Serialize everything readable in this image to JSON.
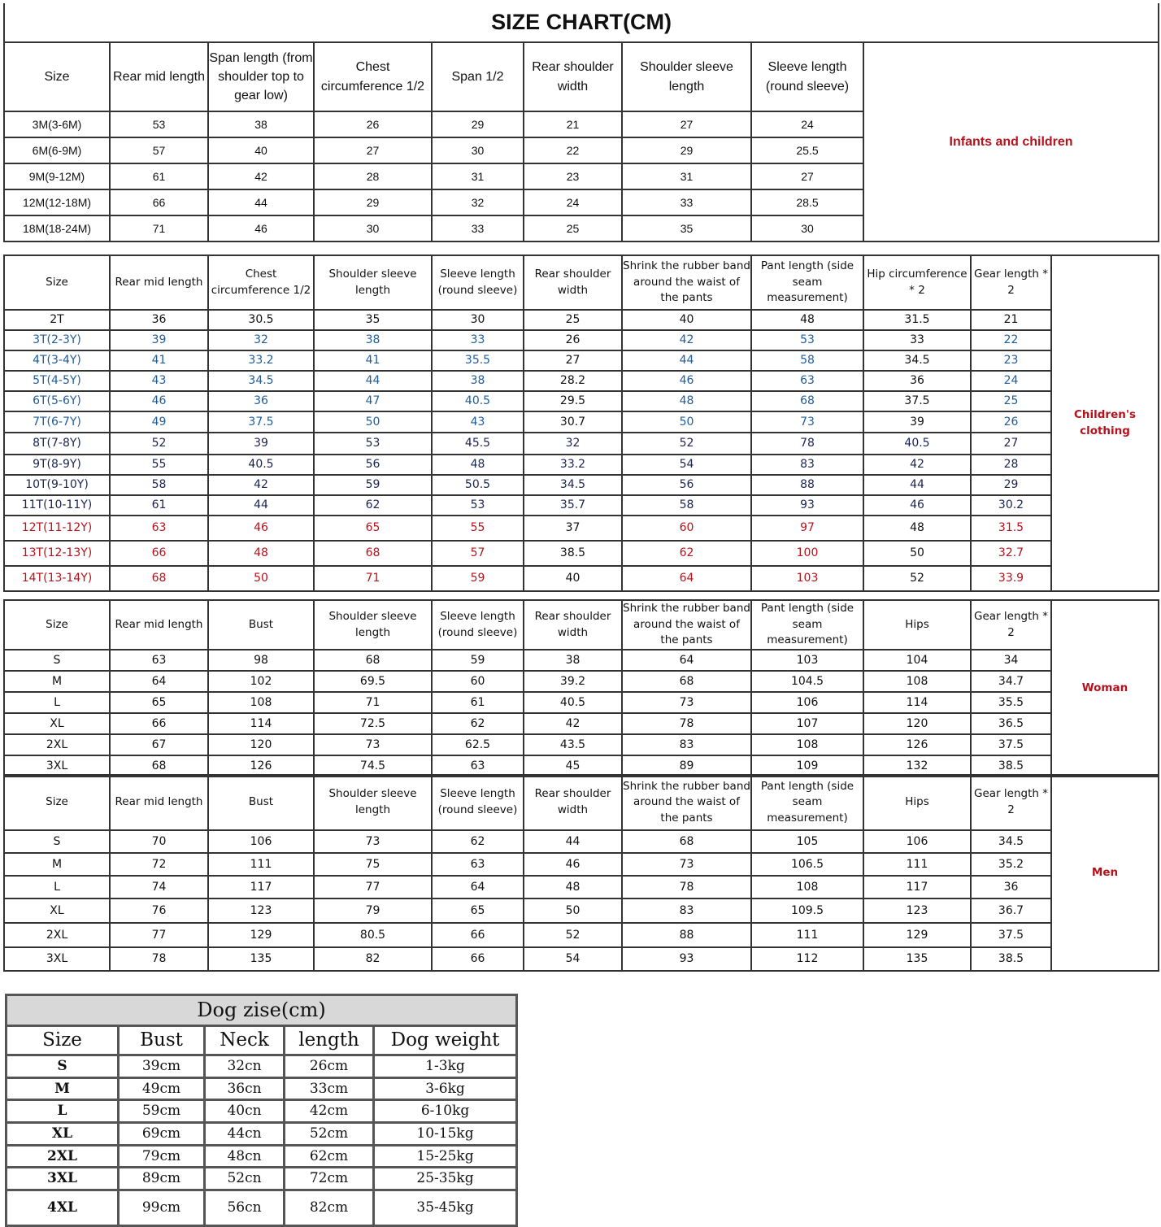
{
  "title": "SIZE CHART(CM)",
  "colors": {
    "label": "#b5121b",
    "blue": "#1f5c99",
    "red": "#b5121b",
    "navy": "#1a2450"
  },
  "infants": {
    "label": "Infants and children",
    "headers": [
      "Size",
      "Rear mid length",
      "Span length (from shoulder top to gear low)",
      "Chest circumference 1/2",
      "Span 1/2",
      "Rear shoulder width",
      "Shoulder sleeve length",
      "Sleeve length (round sleeve)"
    ],
    "rows": [
      {
        "color": "black",
        "cells": [
          "3M(3-6M)",
          "53",
          "38",
          "26",
          "29",
          "21",
          "27",
          "24"
        ]
      },
      {
        "color": "black",
        "cells": [
          "6M(6-9M)",
          "57",
          "40",
          "27",
          "30",
          "22",
          "29",
          "25.5"
        ]
      },
      {
        "color": "black",
        "cells": [
          "9M(9-12M)",
          "61",
          "42",
          "28",
          "31",
          "23",
          "31",
          "27"
        ]
      },
      {
        "color": "black",
        "cells": [
          "12M(12-18M)",
          "66",
          "44",
          "29",
          "32",
          "24",
          "33",
          "28.5"
        ]
      },
      {
        "color": "black",
        "cells": [
          "18M(18-24M)",
          "71",
          "46",
          "30",
          "33",
          "25",
          "35",
          "30"
        ]
      }
    ]
  },
  "children": {
    "label": "Children's clothing",
    "headers": [
      "Size",
      "Rear mid length",
      "Chest circumference 1/2",
      "Shoulder sleeve length",
      "Sleeve length (round sleeve)",
      "Rear shoulder width",
      "Shrink the rubber band around the waist of the pants",
      "Pant length (side seam measurement)",
      "Hip circumference * 2",
      "Gear length * 2"
    ],
    "black_columns": [
      5,
      8
    ],
    "rows": [
      {
        "color": "black",
        "cells": [
          "2T",
          "36",
          "30.5",
          "35",
          "30",
          "25",
          "40",
          "48",
          "31.5",
          "21"
        ]
      },
      {
        "color": "blue",
        "cells": [
          "3T(2-3Y)",
          "39",
          "32",
          "38",
          "33",
          "26",
          "42",
          "53",
          "33",
          "22"
        ]
      },
      {
        "color": "blue",
        "cells": [
          "4T(3-4Y)",
          "41",
          "33.2",
          "41",
          "35.5",
          "27",
          "44",
          "58",
          "34.5",
          "23"
        ]
      },
      {
        "color": "blue",
        "cells": [
          "5T(4-5Y)",
          "43",
          "34.5",
          "44",
          "38",
          "28.2",
          "46",
          "63",
          "36",
          "24"
        ]
      },
      {
        "color": "blue",
        "cells": [
          "6T(5-6Y)",
          "46",
          "36",
          "47",
          "40.5",
          "29.5",
          "48",
          "68",
          "37.5",
          "25"
        ]
      },
      {
        "color": "blue",
        "cells": [
          "7T(6-7Y)",
          "49",
          "37.5",
          "50",
          "43",
          "30.7",
          "50",
          "73",
          "39",
          "26"
        ]
      },
      {
        "color": "navy",
        "cells": [
          "8T(7-8Y)",
          "52",
          "39",
          "53",
          "45.5",
          "32",
          "52",
          "78",
          "40.5",
          "27"
        ]
      },
      {
        "color": "navy",
        "cells": [
          "9T(8-9Y)",
          "55",
          "40.5",
          "56",
          "48",
          "33.2",
          "54",
          "83",
          "42",
          "28"
        ]
      },
      {
        "color": "navy",
        "cells": [
          "10T(9-10Y)",
          "58",
          "42",
          "59",
          "50.5",
          "34.5",
          "56",
          "88",
          "44",
          "29"
        ]
      },
      {
        "color": "navy",
        "cells": [
          "11T(10-11Y)",
          "61",
          "44",
          "62",
          "53",
          "35.7",
          "58",
          "93",
          "46",
          "30.2"
        ]
      },
      {
        "color": "red",
        "cells": [
          "12T(11-12Y)",
          "63",
          "46",
          "65",
          "55",
          "37",
          "60",
          "97",
          "48",
          "31.5"
        ]
      },
      {
        "color": "red",
        "cells": [
          "13T(12-13Y)",
          "66",
          "48",
          "68",
          "57",
          "38.5",
          "62",
          "100",
          "50",
          "32.7"
        ]
      },
      {
        "color": "red",
        "cells": [
          "14T(13-14Y)",
          "68",
          "50",
          "71",
          "59",
          "40",
          "64",
          "103",
          "52",
          "33.9"
        ]
      }
    ]
  },
  "woman": {
    "label": "Woman",
    "headers": [
      "Size",
      "Rear mid length",
      "Bust",
      "Shoulder sleeve length",
      "Sleeve length (round sleeve)",
      "Rear shoulder width",
      "Shrink the rubber band around the waist of the pants",
      "Pant length (side seam measurement)",
      "Hips",
      "Gear length * 2"
    ],
    "rows": [
      {
        "color": "black",
        "cells": [
          "S",
          "63",
          "98",
          "68",
          "59",
          "38",
          "64",
          "103",
          "104",
          "34"
        ]
      },
      {
        "color": "black",
        "cells": [
          "M",
          "64",
          "102",
          "69.5",
          "60",
          "39.2",
          "68",
          "104.5",
          "108",
          "34.7"
        ]
      },
      {
        "color": "black",
        "cells": [
          "L",
          "65",
          "108",
          "71",
          "61",
          "40.5",
          "73",
          "106",
          "114",
          "35.5"
        ]
      },
      {
        "color": "black",
        "cells": [
          "XL",
          "66",
          "114",
          "72.5",
          "62",
          "42",
          "78",
          "107",
          "120",
          "36.5"
        ]
      },
      {
        "color": "black",
        "cells": [
          "2XL",
          "67",
          "120",
          "73",
          "62.5",
          "43.5",
          "83",
          "108",
          "126",
          "37.5"
        ]
      },
      {
        "color": "black",
        "cells": [
          "3XL",
          "68",
          "126",
          "74.5",
          "63",
          "45",
          "89",
          "109",
          "132",
          "38.5"
        ]
      }
    ]
  },
  "men": {
    "label": "Men",
    "headers": [
      "Size",
      "Rear mid length",
      "Bust",
      "Shoulder sleeve length",
      "Sleeve length (round sleeve)",
      "Rear shoulder width",
      "Shrink the rubber band around the waist of the pants",
      "Pant length (side seam measurement)",
      "Hips",
      "Gear length * 2"
    ],
    "rows": [
      {
        "color": "black",
        "cells": [
          "S",
          "70",
          "106",
          "73",
          "62",
          "44",
          "68",
          "105",
          "106",
          "34.5"
        ]
      },
      {
        "color": "black",
        "cells": [
          "M",
          "72",
          "111",
          "75",
          "63",
          "46",
          "73",
          "106.5",
          "111",
          "35.2"
        ]
      },
      {
        "color": "black",
        "cells": [
          "L",
          "74",
          "117",
          "77",
          "64",
          "48",
          "78",
          "108",
          "117",
          "36"
        ]
      },
      {
        "color": "black",
        "cells": [
          "XL",
          "76",
          "123",
          "79",
          "65",
          "50",
          "83",
          "109.5",
          "123",
          "36.7"
        ]
      },
      {
        "color": "black",
        "cells": [
          "2XL",
          "77",
          "129",
          "80.5",
          "66",
          "52",
          "88",
          "111",
          "129",
          "37.5"
        ]
      },
      {
        "color": "black",
        "cells": [
          "3XL",
          "78",
          "135",
          "82",
          "66",
          "54",
          "93",
          "112",
          "135",
          "38.5"
        ]
      }
    ]
  },
  "dog": {
    "title": "Dog zise(cm)",
    "headers": [
      "Size",
      "Bust",
      "Neck",
      "length",
      "Dog weight"
    ],
    "rows": [
      [
        "S",
        "39cm",
        "32cn",
        "26cm",
        "1-3kg"
      ],
      [
        "M",
        "49cm",
        "36cn",
        "33cm",
        "3-6kg"
      ],
      [
        "L",
        "59cm",
        "40cn",
        "42cm",
        "6-10kg"
      ],
      [
        "XL",
        "69cm",
        "44cn",
        "52cm",
        "10-15kg"
      ],
      [
        "2XL",
        "79cm",
        "48cn",
        "62cm",
        "15-25kg"
      ],
      [
        "3XL",
        "89cm",
        "52cn",
        "72cm",
        "25-35kg"
      ],
      [
        "4XL",
        "99cm",
        "56cn",
        "82cm",
        "35-45kg"
      ]
    ]
  }
}
